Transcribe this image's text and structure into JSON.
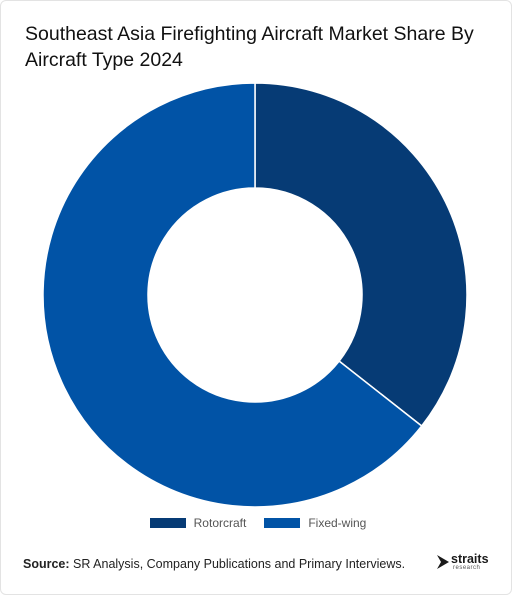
{
  "chart_data": {
    "type": "pie",
    "title": "Southeast Asia Firefighting Aircraft Market Share By Aircraft Type 2024",
    "donut": true,
    "categories": [
      "Rotorcraft",
      "Fixed-wing"
    ],
    "values": [
      35.6,
      64.4
    ],
    "colors": [
      "#063b75",
      "#0153a6"
    ],
    "legend_position": "bottom-center"
  },
  "source": {
    "label": "Source:",
    "text": " SR Analysis, Company Publications and Primary Interviews."
  },
  "logo": {
    "word": "straits",
    "sub": "research"
  }
}
